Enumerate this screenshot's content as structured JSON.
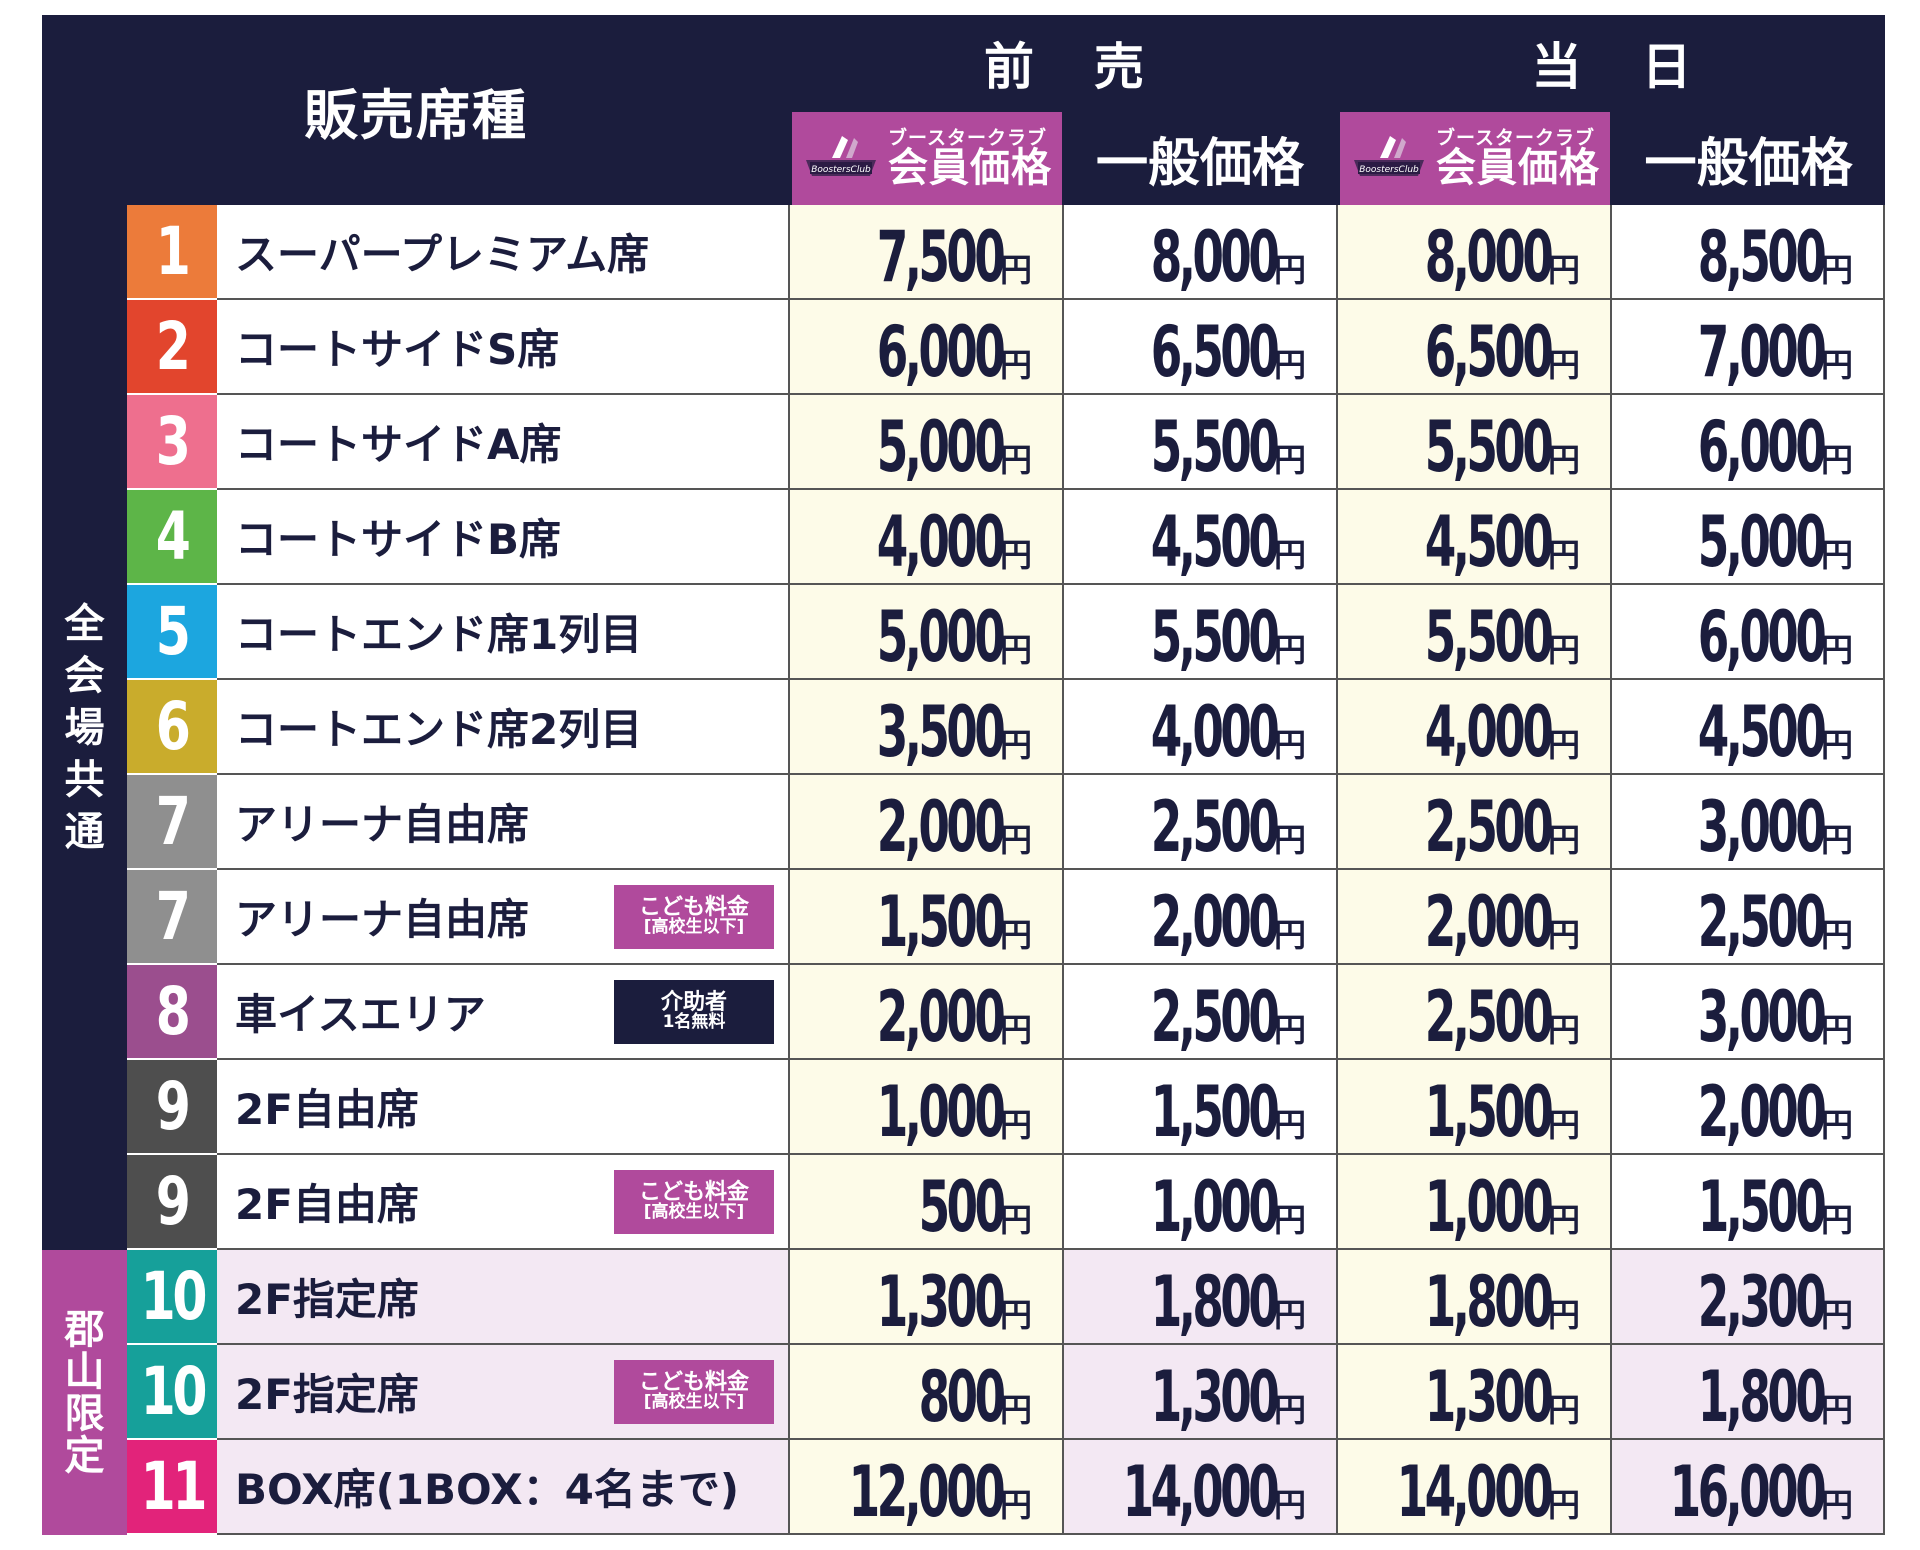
{
  "header": {
    "seat_type": "販売席種",
    "advance": "前売",
    "same_day": "当日",
    "member_small": "ブースタークラブ",
    "member_big": "会員価格",
    "general": "一般価格",
    "logo_text": "BoostersClub"
  },
  "side_labels": {
    "all_venues": [
      "全",
      "会",
      "場",
      "共",
      "通"
    ],
    "koriyama": [
      "郡",
      "山",
      "限",
      "定"
    ]
  },
  "rows": [
    {
      "num": "1",
      "color": "#ec7b3a",
      "name": "スーパープレミアム席",
      "badge": null,
      "prices": [
        "7,500",
        "8,000",
        "8,000",
        "8,500"
      ]
    },
    {
      "num": "2",
      "color": "#e2452d",
      "name": "コートサイドS席",
      "badge": null,
      "prices": [
        "6,000",
        "6,500",
        "6,500",
        "7,000"
      ]
    },
    {
      "num": "3",
      "color": "#ee6f8e",
      "name": "コートサイドA席",
      "badge": null,
      "prices": [
        "5,000",
        "5,500",
        "5,500",
        "6,000"
      ]
    },
    {
      "num": "4",
      "color": "#5db548",
      "name": "コートサイドB席",
      "badge": null,
      "prices": [
        "4,000",
        "4,500",
        "4,500",
        "5,000"
      ]
    },
    {
      "num": "5",
      "color": "#1ca6df",
      "name": "コートエンド席1列目",
      "badge": null,
      "prices": [
        "5,000",
        "5,500",
        "5,500",
        "6,000"
      ]
    },
    {
      "num": "6",
      "color": "#c9ac2c",
      "name": "コートエンド席2列目",
      "badge": null,
      "prices": [
        "3,500",
        "4,000",
        "4,000",
        "4,500"
      ]
    },
    {
      "num": "7",
      "color": "#8f8f8f",
      "name": "アリーナ自由席",
      "badge": null,
      "prices": [
        "2,000",
        "2,500",
        "2,500",
        "3,000"
      ]
    },
    {
      "num": "7",
      "color": "#8f8f8f",
      "name": "アリーナ自由席",
      "badge": {
        "type": "a",
        "line1": "こども料金",
        "line2": "[高校生以下]"
      },
      "prices": [
        "1,500",
        "2,000",
        "2,000",
        "2,500"
      ]
    },
    {
      "num": "8",
      "color": "#9b4e8e",
      "name": "車イスエリア",
      "badge": {
        "type": "b",
        "line1": "介助者",
        "line2": "1名無料"
      },
      "prices": [
        "2,000",
        "2,500",
        "2,500",
        "3,000"
      ]
    },
    {
      "num": "9",
      "color": "#4e4e4e",
      "name": "2F自由席",
      "badge": null,
      "prices": [
        "1,000",
        "1,500",
        "1,500",
        "2,000"
      ]
    },
    {
      "num": "9",
      "color": "#4e4e4e",
      "name": "2F自由席",
      "badge": {
        "type": "a",
        "line1": "こども料金",
        "line2": "[高校生以下]"
      },
      "prices": [
        "500",
        "1,000",
        "1,000",
        "1,500"
      ]
    },
    {
      "num": "10",
      "color": "#16a09a",
      "name": "2F指定席",
      "badge": null,
      "prices": [
        "1,300",
        "1,800",
        "1,800",
        "2,300"
      ]
    },
    {
      "num": "10",
      "color": "#16a09a",
      "name": "2F指定席",
      "badge": {
        "type": "a",
        "line1": "こども料金",
        "line2": "[高校生以下]"
      },
      "prices": [
        "800",
        "1,300",
        "1,300",
        "1,800"
      ]
    },
    {
      "num": "11",
      "color": "#e2237a",
      "name": "BOX席(1BOX：4名まで)",
      "badge": null,
      "prices": [
        "12,000",
        "14,000",
        "14,000",
        "16,000"
      ]
    }
  ],
  "yen": "円",
  "colors": {
    "navy": "#1b1d3d",
    "purple": "#b04a9c",
    "member_bg": "#fdfbe8",
    "koriyama_bg": "#f3e8f3"
  }
}
